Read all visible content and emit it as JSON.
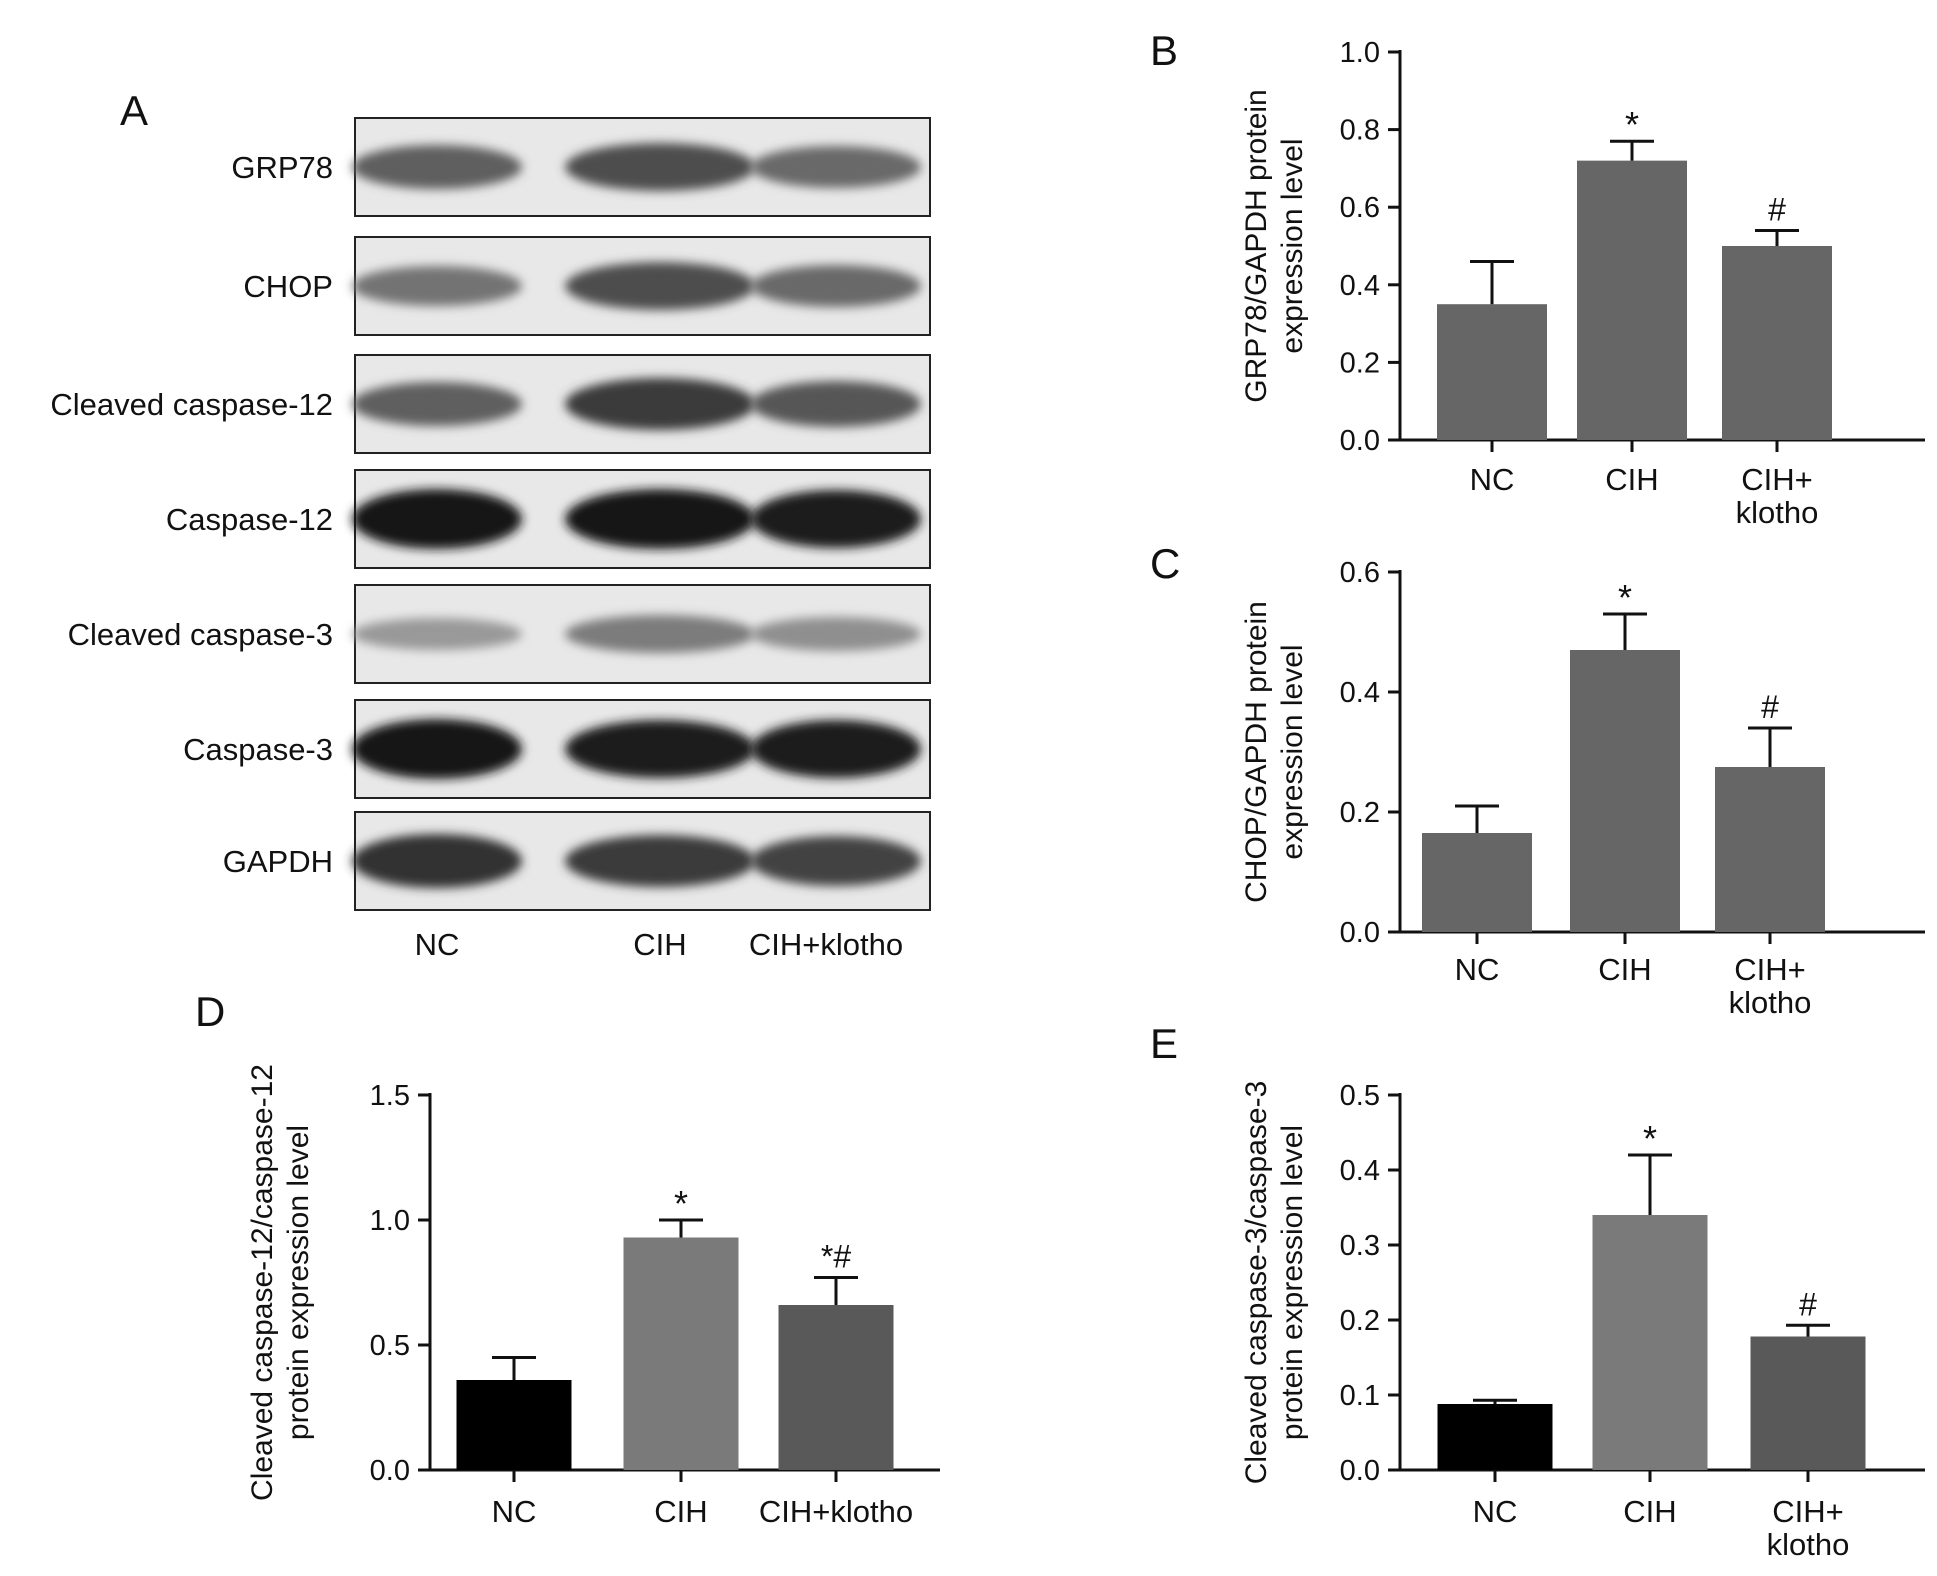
{
  "panel_letters": {
    "a": "A",
    "b": "B",
    "c": "C",
    "d": "D",
    "e": "E"
  },
  "blot": {
    "rows": [
      "GRP78",
      "CHOP",
      "Cleaved caspase-12",
      "Caspase-12",
      "Cleaved caspase-3",
      "Caspase-3",
      "GAPDH"
    ],
    "lanes": [
      "NC",
      "CIH",
      "CIH+klotho"
    ],
    "band_intensity": [
      [
        0.55,
        0.65,
        0.5
      ],
      [
        0.45,
        0.65,
        0.5
      ],
      [
        0.55,
        0.75,
        0.6
      ],
      [
        0.95,
        0.95,
        0.9
      ],
      [
        0.25,
        0.4,
        0.3
      ],
      [
        0.95,
        0.9,
        0.9
      ],
      [
        0.8,
        0.75,
        0.7
      ]
    ]
  },
  "chart_data": [
    {
      "id": "B",
      "type": "bar",
      "categories": [
        [
          "NC"
        ],
        [
          "CIH"
        ],
        [
          "CIH+",
          "klotho"
        ]
      ],
      "values": [
        0.35,
        0.72,
        0.5
      ],
      "errors": [
        0.11,
        0.05,
        0.04
      ],
      "annotations": [
        "",
        "*",
        "#"
      ],
      "ylabel": [
        "GRP78/GAPDH protein",
        "expression level"
      ],
      "ylim": [
        0,
        1.0
      ],
      "yticks": [
        "0.0",
        "0.2",
        "0.4",
        "0.6",
        "0.8",
        "1.0"
      ],
      "colors": [
        "#666666",
        "#666666",
        "#666666"
      ]
    },
    {
      "id": "C",
      "type": "bar",
      "categories": [
        [
          "NC"
        ],
        [
          "CIH"
        ],
        [
          "CIH+",
          "klotho"
        ]
      ],
      "values": [
        0.165,
        0.47,
        0.275
      ],
      "errors": [
        0.045,
        0.06,
        0.065
      ],
      "annotations": [
        "",
        "*",
        "#"
      ],
      "ylabel": [
        "CHOP/GAPDH protein",
        "expression level"
      ],
      "ylim": [
        0,
        0.6
      ],
      "yticks": [
        "0.0",
        "0.2",
        "0.4",
        "0.6"
      ],
      "colors": [
        "#666666",
        "#666666",
        "#666666"
      ]
    },
    {
      "id": "D",
      "type": "bar",
      "categories": [
        [
          "NC"
        ],
        [
          "CIH"
        ],
        [
          "CIH+klotho"
        ]
      ],
      "values": [
        0.36,
        0.93,
        0.66
      ],
      "errors": [
        0.09,
        0.07,
        0.11
      ],
      "annotations": [
        "",
        "*",
        "*#"
      ],
      "ylabel": [
        "Cleaved caspase-12/caspase-12",
        "protein expression level"
      ],
      "ylim": [
        0,
        1.5
      ],
      "yticks": [
        "0.0",
        "0.5",
        "1.0",
        "1.5"
      ],
      "colors": [
        "#000000",
        "#7a7a7a",
        "#595959"
      ]
    },
    {
      "id": "E",
      "type": "bar",
      "categories": [
        [
          "NC"
        ],
        [
          "CIH"
        ],
        [
          "CIH+",
          "klotho"
        ]
      ],
      "values": [
        0.088,
        0.34,
        0.178
      ],
      "errors": [
        0.005,
        0.08,
        0.015
      ],
      "annotations": [
        "",
        "*",
        "#"
      ],
      "ylabel": [
        "Cleaved caspase-3/caspase-3",
        "protein expression level"
      ],
      "ylim": [
        0,
        0.5
      ],
      "yticks": [
        "0.0",
        "0.1",
        "0.2",
        "0.3",
        "0.4",
        "0.5"
      ],
      "colors": [
        "#000000",
        "#7a7a7a",
        "#595959"
      ]
    }
  ]
}
